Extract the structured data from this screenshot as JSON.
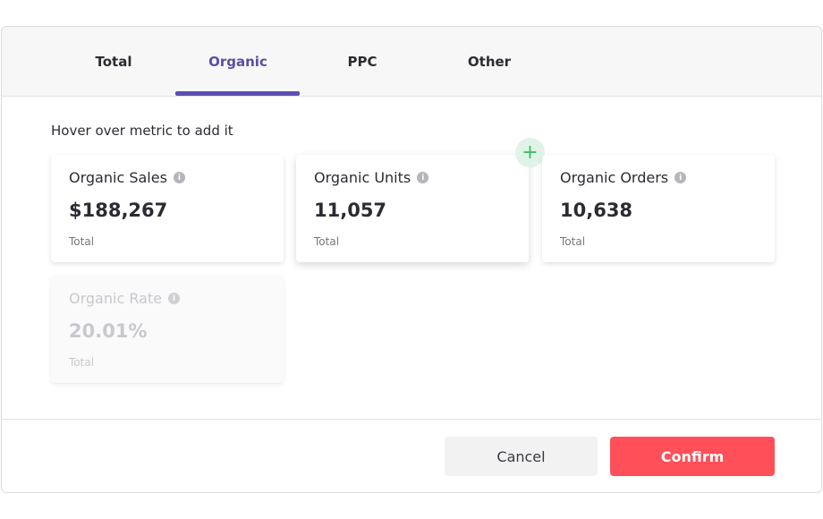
{
  "tabs": [
    {
      "label": "Total"
    },
    {
      "label": "Organic"
    },
    {
      "label": "PPC"
    },
    {
      "label": "Other"
    }
  ],
  "active_tab": "Organic",
  "hint": "Hover over metric to add it",
  "metrics": [
    {
      "title": "Organic Sales",
      "value": "$188,267",
      "sub": "Total",
      "state": "available"
    },
    {
      "title": "Organic Units",
      "value": "11,057",
      "sub": "Total",
      "state": "hovered"
    },
    {
      "title": "Organic Orders",
      "value": "10,638",
      "sub": "Total",
      "state": "available"
    },
    {
      "title": "Organic Rate",
      "value": "20.01%",
      "sub": "Total",
      "state": "disabled"
    }
  ],
  "icons": {
    "info": "info-icon",
    "add": "plus-icon"
  },
  "buttons": {
    "cancel": "Cancel",
    "confirm": "Confirm"
  },
  "colors": {
    "accent": "#5c4fb0",
    "confirm": "#ff4f58",
    "add": "#3dbb6b"
  }
}
